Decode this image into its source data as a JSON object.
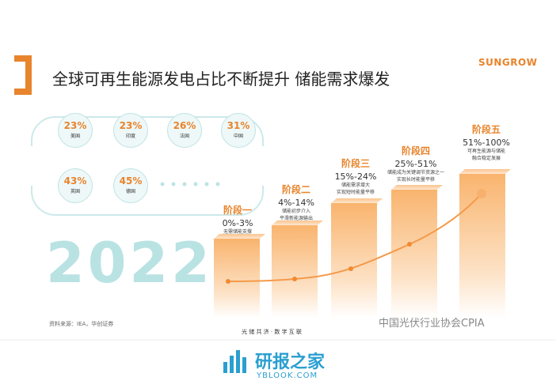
{
  "title": "全球可再生能源发电占比不断提升 储能需求爆发",
  "brand": "SUNGROW",
  "countries": [
    {
      "share": "23%",
      "name": "美国"
    },
    {
      "share": "23%",
      "name": "印度"
    },
    {
      "share": "26%",
      "name": "法国"
    },
    {
      "share": "31%",
      "name": "中国"
    },
    {
      "share": "43%",
      "name": "英国"
    },
    {
      "share": "45%",
      "name": "德国"
    }
  ],
  "year": "2022",
  "stages": [
    {
      "name": "阶段一",
      "range": "0%-3%",
      "desc": [
        "无需储能支撑"
      ]
    },
    {
      "name": "阶段二",
      "range": "4%-14%",
      "desc": [
        "储能初步介入",
        "平滑新能源输出"
      ]
    },
    {
      "name": "阶段三",
      "range": "15%-24%",
      "desc": [
        "储能需求增大",
        "实现短时能量平移"
      ]
    },
    {
      "name": "阶段四",
      "range": "25%-51%",
      "desc": [
        "储能成为关键调节资源之一",
        "实现长时能量平移"
      ]
    },
    {
      "name": "阶段五",
      "range": "51%-100%",
      "desc": [
        "可再生能源与储能",
        "融合稳定发展"
      ]
    }
  ],
  "source": "资料来源：IEA，华创证券",
  "slogan": "光 储 共 济 · 数 字 互 联",
  "watermark": "中国光伏行业协会CPIA",
  "site": {
    "name": "研报之家",
    "url": "YBLOOK.COM"
  }
}
